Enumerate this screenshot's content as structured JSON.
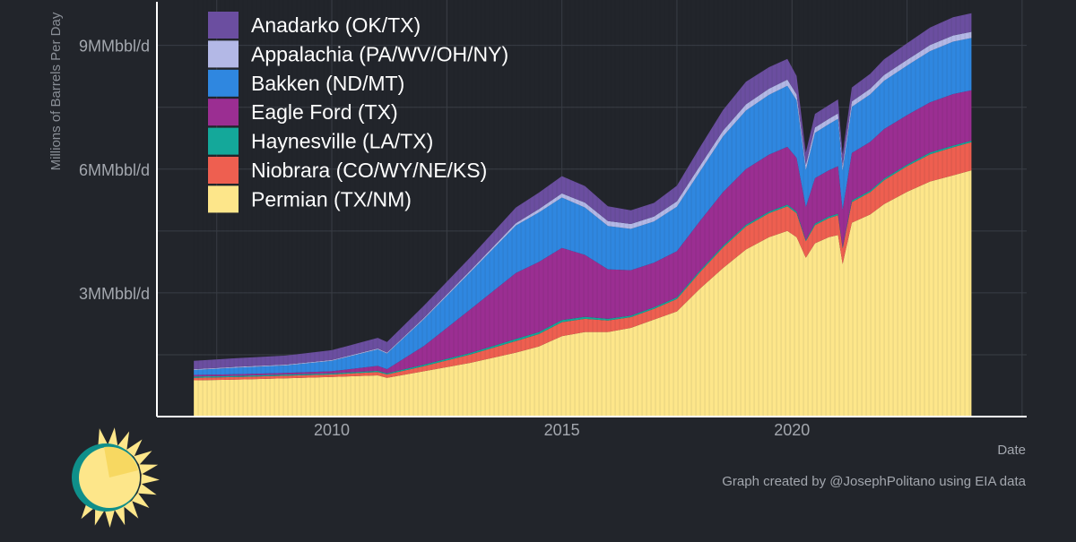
{
  "chart_data": {
    "type": "area",
    "stacked": true,
    "title": "",
    "xlabel": "Date",
    "ylabel": "Millions of Barrels Per Day",
    "x_ticks": [
      {
        "value": 2010,
        "label": "2010"
      },
      {
        "value": 2015,
        "label": "2015"
      },
      {
        "value": 2020,
        "label": "2020"
      }
    ],
    "y_ticks": [
      {
        "value": 3,
        "label": "3MMbbl/d"
      },
      {
        "value": 6,
        "label": "6MMbbl/d"
      },
      {
        "value": 9,
        "label": "9MMbbl/d"
      }
    ],
    "xlim": [
      2006.2,
      2025.1
    ],
    "ylim": [
      0,
      10.1
    ],
    "grid": true,
    "legend_position": "top-left",
    "x": [
      2007.0,
      2008.0,
      2009.0,
      2010.0,
      2011.0,
      2011.2,
      2012.0,
      2013.0,
      2014.0,
      2014.5,
      2015.0,
      2015.5,
      2016.0,
      2016.5,
      2017.0,
      2017.5,
      2018.0,
      2018.5,
      2019.0,
      2019.5,
      2019.9,
      2020.1,
      2020.3,
      2020.5,
      2020.8,
      2021.0,
      2021.1,
      2021.3,
      2021.7,
      2022.0,
      2022.5,
      2023.0,
      2023.5,
      2023.9
    ],
    "series": [
      {
        "name": "Permian (TX/NM)",
        "color": "#fde68a",
        "values": [
          0.88,
          0.9,
          0.93,
          0.96,
          1.0,
          0.94,
          1.1,
          1.3,
          1.55,
          1.7,
          1.95,
          2.05,
          2.05,
          2.15,
          2.35,
          2.55,
          3.1,
          3.6,
          4.05,
          4.35,
          4.5,
          4.35,
          3.85,
          4.2,
          4.35,
          4.4,
          3.7,
          4.7,
          4.9,
          5.15,
          5.45,
          5.7,
          5.85,
          5.97
        ]
      },
      {
        "name": "Niobrara (CO/WY/NE/KS)",
        "color": "#ee5f50",
        "values": [
          0.06,
          0.06,
          0.06,
          0.06,
          0.08,
          0.08,
          0.12,
          0.2,
          0.28,
          0.3,
          0.34,
          0.32,
          0.28,
          0.26,
          0.26,
          0.3,
          0.4,
          0.5,
          0.56,
          0.58,
          0.6,
          0.58,
          0.4,
          0.44,
          0.46,
          0.48,
          0.38,
          0.5,
          0.54,
          0.58,
          0.62,
          0.66,
          0.68,
          0.68
        ]
      },
      {
        "name": "Haynesville (LA/TX)",
        "color": "#14a89a",
        "values": [
          0.03,
          0.03,
          0.03,
          0.03,
          0.03,
          0.03,
          0.04,
          0.04,
          0.05,
          0.05,
          0.05,
          0.05,
          0.04,
          0.04,
          0.04,
          0.04,
          0.04,
          0.04,
          0.04,
          0.04,
          0.04,
          0.04,
          0.03,
          0.04,
          0.04,
          0.04,
          0.03,
          0.04,
          0.04,
          0.04,
          0.04,
          0.04,
          0.04,
          0.04
        ]
      },
      {
        "name": "Eagle Ford (TX)",
        "color": "#9b2e92",
        "values": [
          0.04,
          0.04,
          0.04,
          0.05,
          0.12,
          0.1,
          0.45,
          1.05,
          1.6,
          1.7,
          1.75,
          1.5,
          1.2,
          1.1,
          1.08,
          1.12,
          1.2,
          1.3,
          1.35,
          1.38,
          1.4,
          1.3,
          0.8,
          1.1,
          1.12,
          1.15,
          0.9,
          1.15,
          1.18,
          1.2,
          1.2,
          1.22,
          1.25,
          1.22
        ]
      },
      {
        "name": "Bakken (ND/MT)",
        "color": "#2f87e0",
        "values": [
          0.12,
          0.16,
          0.18,
          0.25,
          0.4,
          0.38,
          0.65,
          0.9,
          1.15,
          1.2,
          1.22,
          1.15,
          1.05,
          1.0,
          1.0,
          1.08,
          1.2,
          1.35,
          1.42,
          1.45,
          1.48,
          1.4,
          0.9,
          1.1,
          1.12,
          1.15,
          0.95,
          1.12,
          1.15,
          1.17,
          1.2,
          1.24,
          1.27,
          1.27
        ]
      },
      {
        "name": "Appalachia (PA/WV/OH/NY)",
        "color": "#b3b8e6",
        "values": [
          0.02,
          0.02,
          0.02,
          0.02,
          0.02,
          0.02,
          0.03,
          0.04,
          0.06,
          0.08,
          0.1,
          0.12,
          0.12,
          0.12,
          0.12,
          0.13,
          0.14,
          0.14,
          0.15,
          0.15,
          0.15,
          0.14,
          0.12,
          0.13,
          0.13,
          0.13,
          0.12,
          0.13,
          0.14,
          0.14,
          0.14,
          0.15,
          0.15,
          0.15
        ]
      },
      {
        "name": "Anadarko (OK/TX)",
        "color": "#6b4ea0",
        "values": [
          0.2,
          0.21,
          0.22,
          0.24,
          0.26,
          0.26,
          0.3,
          0.32,
          0.38,
          0.4,
          0.42,
          0.4,
          0.36,
          0.33,
          0.33,
          0.38,
          0.45,
          0.5,
          0.55,
          0.52,
          0.5,
          0.45,
          0.3,
          0.33,
          0.33,
          0.34,
          0.28,
          0.34,
          0.36,
          0.38,
          0.4,
          0.42,
          0.44,
          0.45
        ]
      }
    ],
    "credit": "Graph created by @JosephPolitano using EIA data",
    "colors": {
      "background": "#22252b",
      "grid": "#3a3e46",
      "axis": "#ffffff",
      "text": "#a3a7ae"
    }
  }
}
